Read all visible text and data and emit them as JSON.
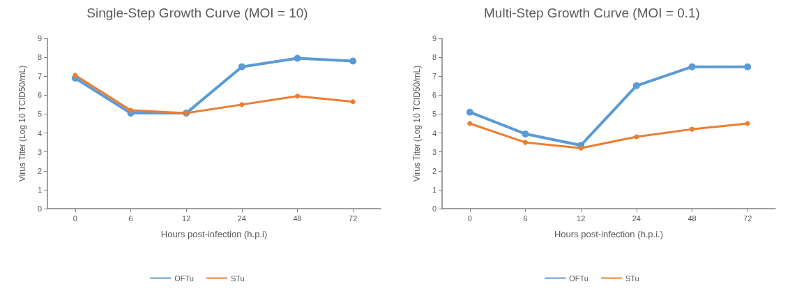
{
  "chart_data": [
    {
      "type": "line",
      "title": "Single-Step Growth Curve (MOI = 10)",
      "xlabel": "Hours post-infection (h.p.i)",
      "ylabel": "Virus Titer (Log 10 TCID50/mL)",
      "categories": [
        "0",
        "6",
        "12",
        "24",
        "48",
        "72"
      ],
      "ylim": [
        0,
        9
      ],
      "yticks": [
        0,
        1,
        2,
        3,
        4,
        5,
        6,
        7,
        8,
        9
      ],
      "grid": false,
      "legend": "bottom",
      "marker": "circle",
      "line_style": "solid",
      "series": [
        {
          "name": "OFTu",
          "color": "#5b9bd5",
          "values": [
            6.9,
            5.05,
            5.05,
            7.5,
            7.95,
            7.8
          ]
        },
        {
          "name": "STu",
          "color": "#ed7d31",
          "values": [
            7.05,
            5.2,
            5.05,
            5.5,
            5.95,
            5.65
          ]
        }
      ]
    },
    {
      "type": "line",
      "title": "Multi-Step Growth Curve (MOI = 0.1)",
      "xlabel": "Hours post-infection (h.p.i.)",
      "ylabel": "Virus Titer (Log 10 TCID50/mL)",
      "categories": [
        "0",
        "6",
        "12",
        "24",
        "48",
        "72"
      ],
      "ylim": [
        0,
        9
      ],
      "yticks": [
        0,
        1,
        2,
        3,
        4,
        5,
        6,
        7,
        8,
        9
      ],
      "grid": false,
      "legend": "bottom",
      "marker": "circle",
      "line_style": "solid",
      "series": [
        {
          "name": "OFTu",
          "color": "#5b9bd5",
          "values": [
            5.1,
            3.95,
            3.35,
            6.5,
            7.5,
            7.5
          ]
        },
        {
          "name": "STu",
          "color": "#ed7d31",
          "values": [
            4.5,
            3.5,
            3.2,
            3.8,
            4.2,
            4.5
          ]
        }
      ]
    }
  ]
}
